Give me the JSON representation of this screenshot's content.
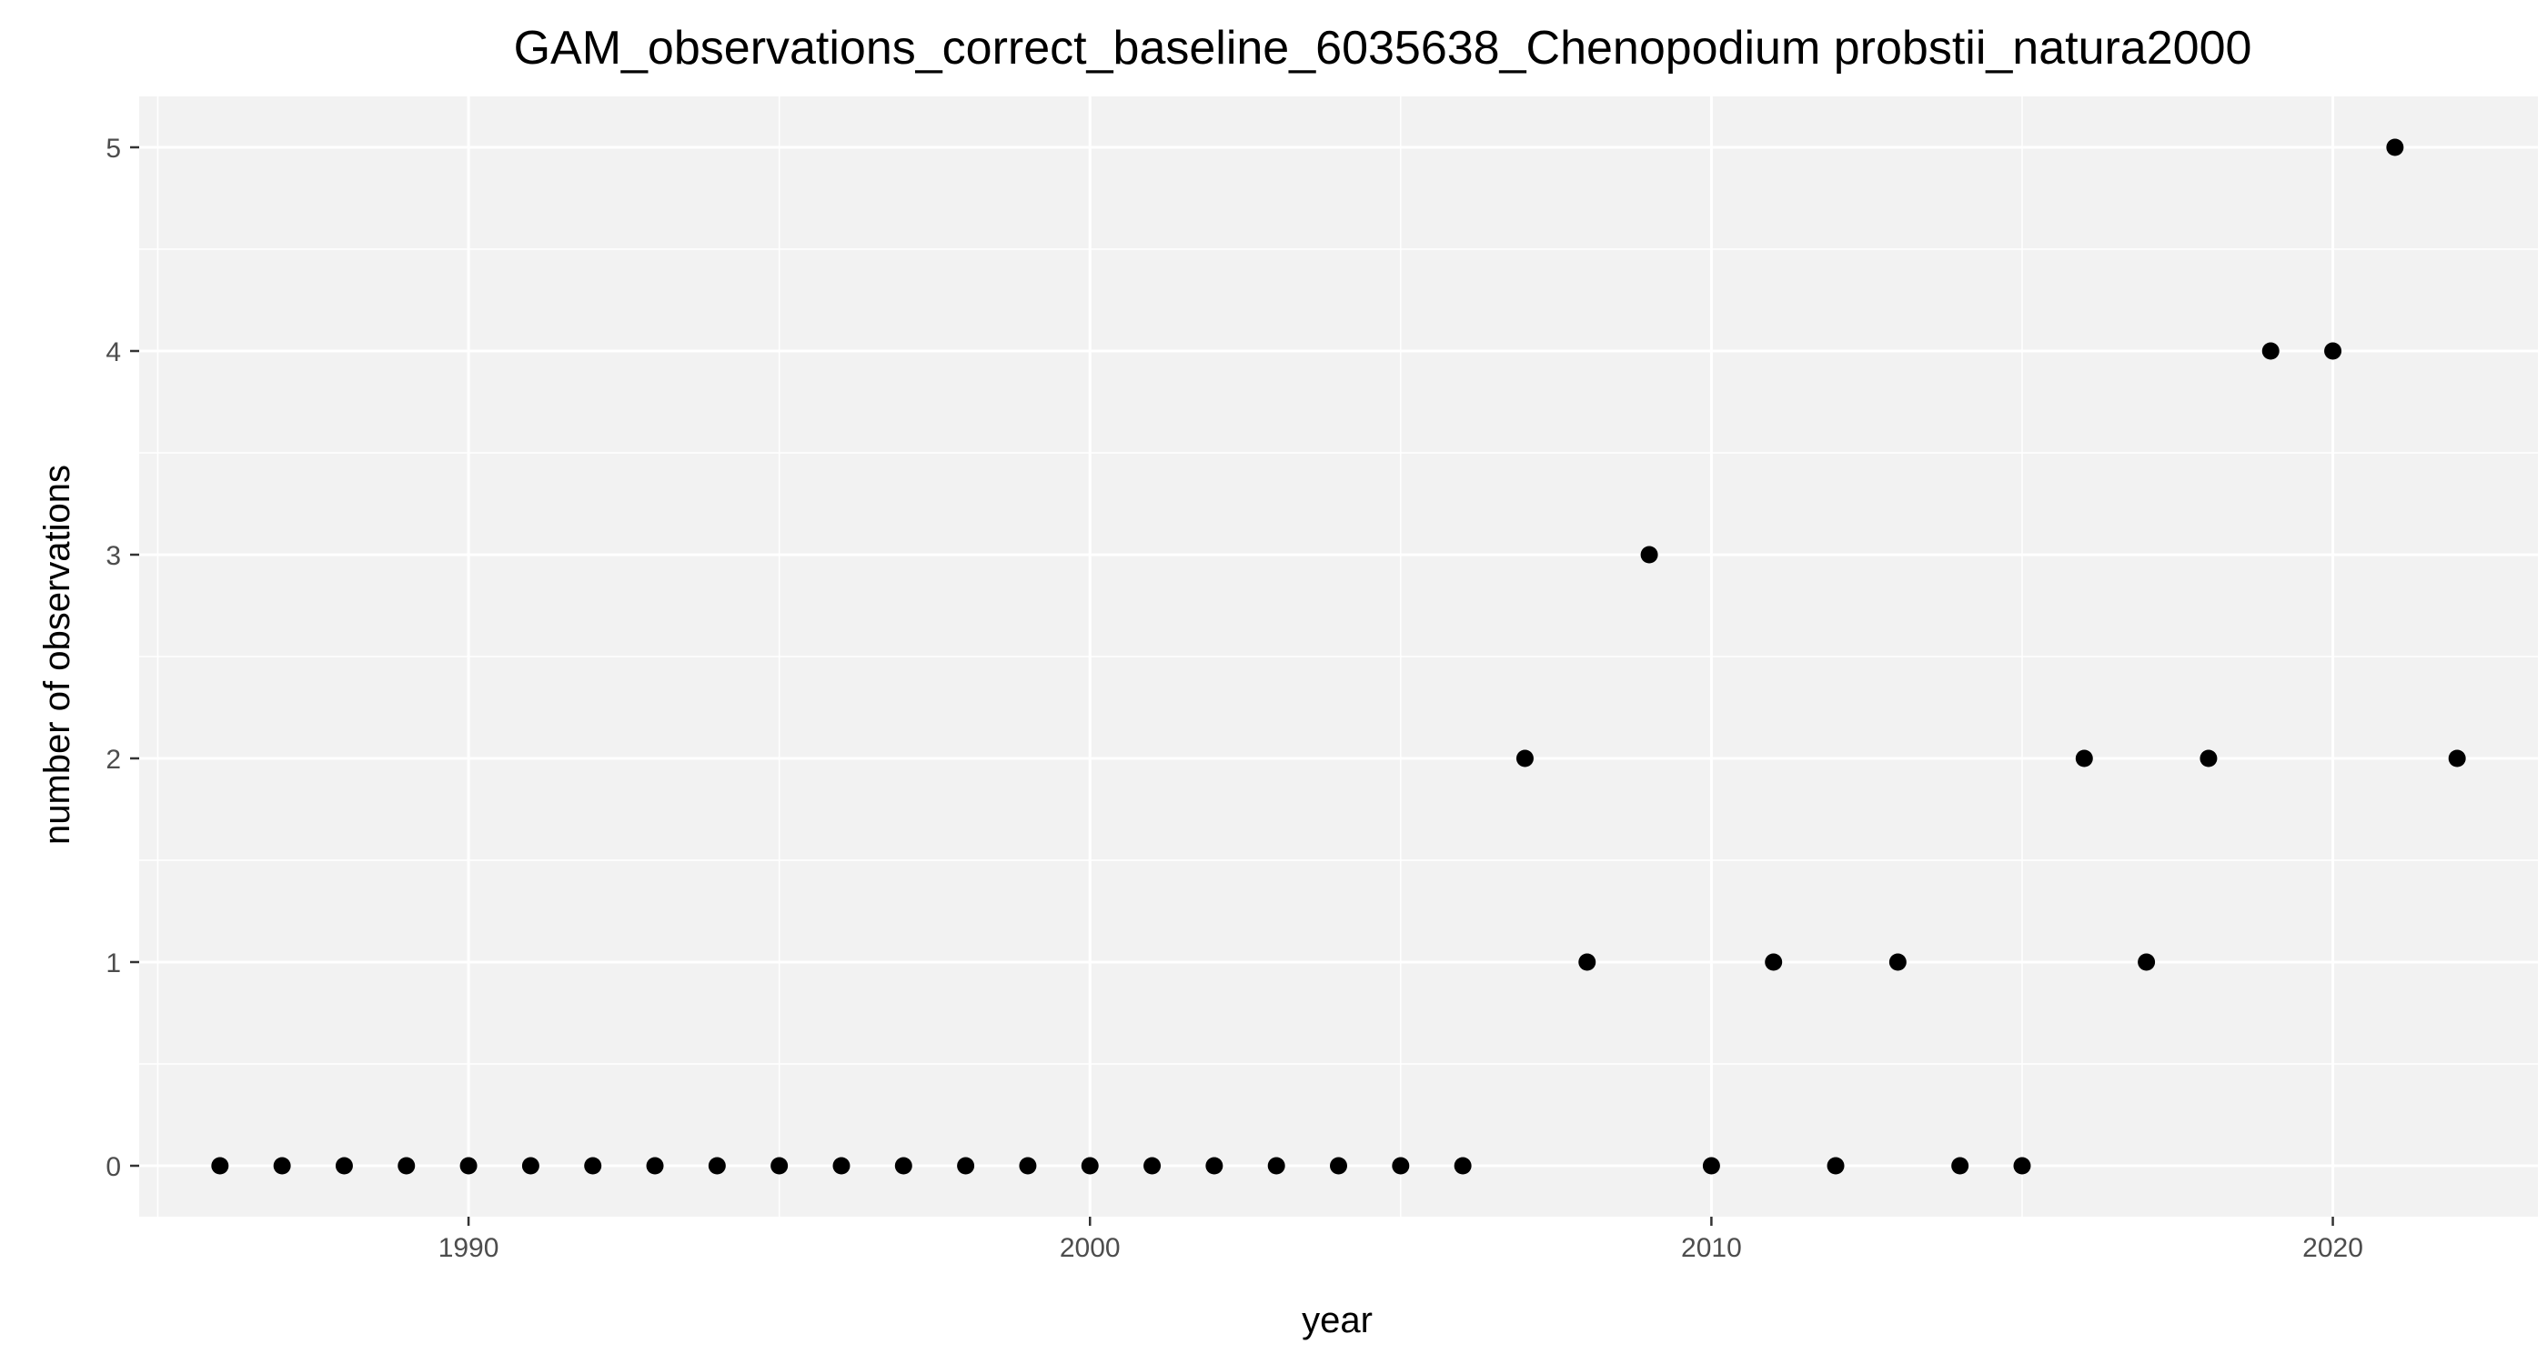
{
  "chart_data": {
    "type": "scatter",
    "title": "GAM_observations_correct_baseline_6035638_Chenopodium probstii_natura2000",
    "xlabel": "year",
    "ylabel": "number of observations",
    "xlim": [
      1984.7,
      2023.3
    ],
    "ylim": [
      -0.25,
      5.25
    ],
    "x_ticks": [
      1990,
      2000,
      2010,
      2020
    ],
    "x_minor_ticks": [
      1985,
      1995,
      2005,
      2015
    ],
    "y_ticks": [
      0,
      1,
      2,
      3,
      4,
      5
    ],
    "grid": true,
    "panel_color": "#f2f2f2",
    "grid_color": "#ffffff",
    "point_color": "#000000",
    "points": [
      {
        "x": 1986,
        "y": 0
      },
      {
        "x": 1987,
        "y": 0
      },
      {
        "x": 1988,
        "y": 0
      },
      {
        "x": 1989,
        "y": 0
      },
      {
        "x": 1990,
        "y": 0
      },
      {
        "x": 1991,
        "y": 0
      },
      {
        "x": 1992,
        "y": 0
      },
      {
        "x": 1993,
        "y": 0
      },
      {
        "x": 1994,
        "y": 0
      },
      {
        "x": 1995,
        "y": 0
      },
      {
        "x": 1996,
        "y": 0
      },
      {
        "x": 1997,
        "y": 0
      },
      {
        "x": 1998,
        "y": 0
      },
      {
        "x": 1999,
        "y": 0
      },
      {
        "x": 2000,
        "y": 0
      },
      {
        "x": 2001,
        "y": 0
      },
      {
        "x": 2002,
        "y": 0
      },
      {
        "x": 2003,
        "y": 0
      },
      {
        "x": 2004,
        "y": 0
      },
      {
        "x": 2005,
        "y": 0
      },
      {
        "x": 2006,
        "y": 0
      },
      {
        "x": 2007,
        "y": 2
      },
      {
        "x": 2008,
        "y": 1
      },
      {
        "x": 2009,
        "y": 3
      },
      {
        "x": 2010,
        "y": 0
      },
      {
        "x": 2011,
        "y": 1
      },
      {
        "x": 2012,
        "y": 0
      },
      {
        "x": 2013,
        "y": 1
      },
      {
        "x": 2014,
        "y": 0
      },
      {
        "x": 2015,
        "y": 0
      },
      {
        "x": 2016,
        "y": 2
      },
      {
        "x": 2017,
        "y": 1
      },
      {
        "x": 2018,
        "y": 2
      },
      {
        "x": 2019,
        "y": 4
      },
      {
        "x": 2020,
        "y": 4
      },
      {
        "x": 2021,
        "y": 5
      },
      {
        "x": 2022,
        "y": 2
      }
    ]
  }
}
